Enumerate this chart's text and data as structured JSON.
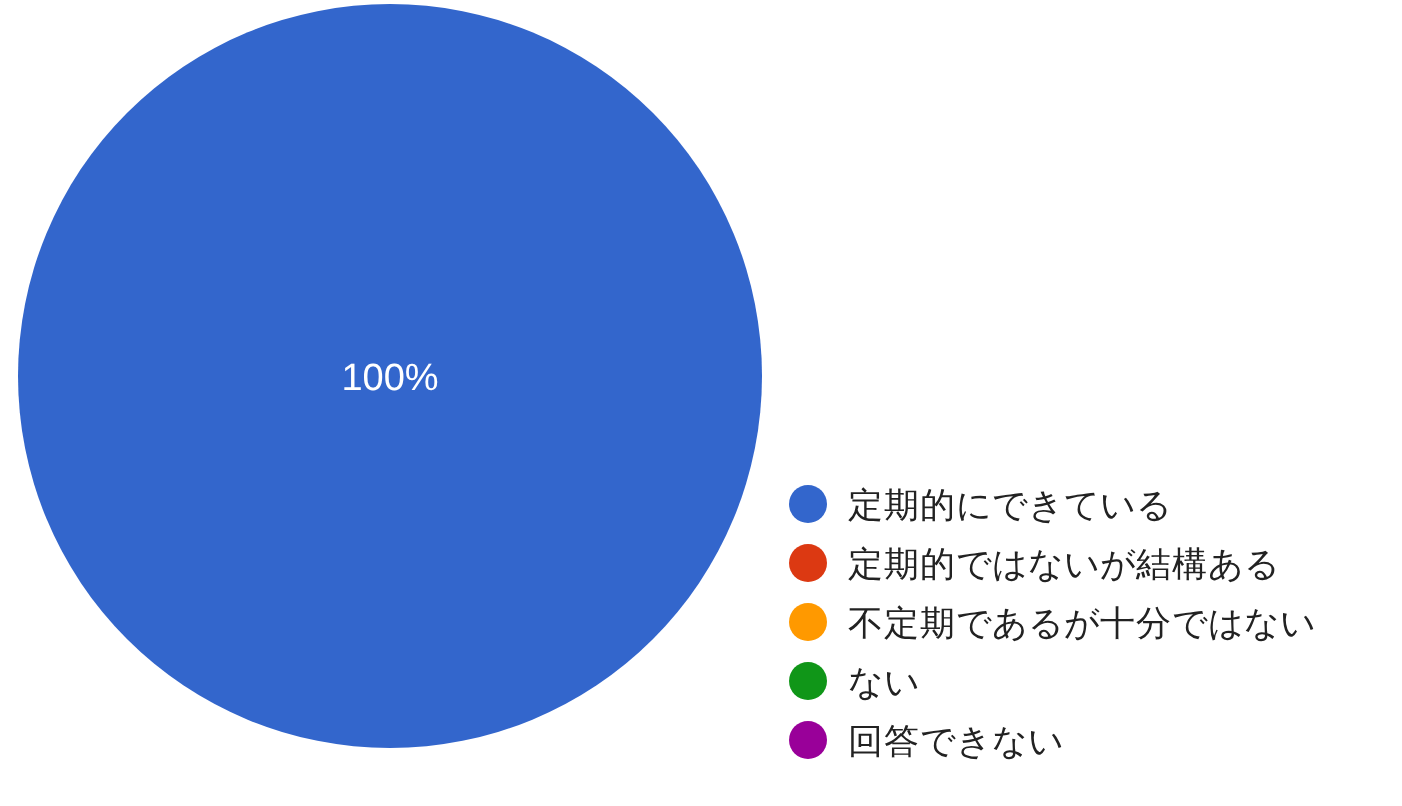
{
  "chart_data": {
    "type": "pie",
    "categories": [
      "定期的にできている",
      "定期的ではないが結構ある",
      "不定期であるが十分ではない",
      "ない",
      "回答できない"
    ],
    "values": [
      100,
      0,
      0,
      0,
      0
    ],
    "colors": [
      "#3366cc",
      "#dc3912",
      "#ff9900",
      "#109618",
      "#990099"
    ],
    "value_labels": [
      "100%",
      null,
      null,
      null,
      null
    ],
    "legend": "right"
  }
}
